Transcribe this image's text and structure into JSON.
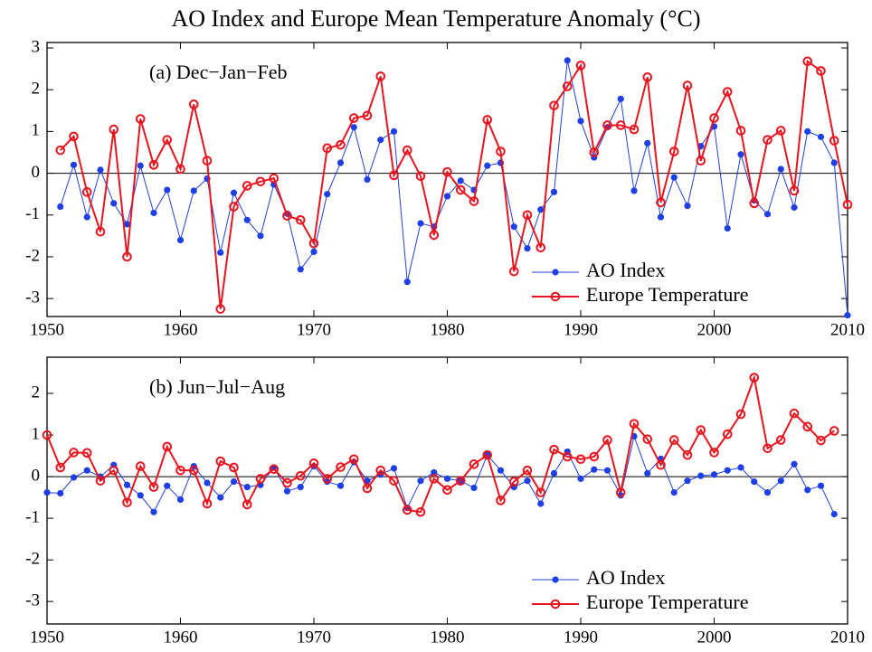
{
  "title": "AO Index and Europe Mean Temperature Anomaly (°C)",
  "chart_data": [
    {
      "type": "line",
      "annotation": "(a)  Dec−Jan−Feb",
      "legend": "lower right",
      "x": [
        1951,
        1952,
        1953,
        1954,
        1955,
        1956,
        1957,
        1958,
        1959,
        1960,
        1961,
        1962,
        1963,
        1964,
        1965,
        1966,
        1967,
        1968,
        1969,
        1970,
        1971,
        1972,
        1973,
        1974,
        1975,
        1976,
        1977,
        1978,
        1979,
        1980,
        1981,
        1982,
        1983,
        1984,
        1985,
        1986,
        1987,
        1988,
        1989,
        1990,
        1991,
        1992,
        1993,
        1994,
        1995,
        1996,
        1997,
        1998,
        1999,
        2000,
        2001,
        2002,
        2003,
        2004,
        2005,
        2006,
        2007,
        2008,
        2009,
        2010
      ],
      "xlim": [
        1950,
        2010
      ],
      "xticks": [
        1950,
        1960,
        1970,
        1980,
        1990,
        2000,
        2010
      ],
      "ylim": [
        -3.43,
        3.13
      ],
      "yticks": [
        -3,
        -2,
        -1,
        0,
        1,
        2,
        3
      ],
      "series": [
        {
          "name": "AO Index",
          "color": "#1f3fe6",
          "values": [
            -0.8,
            0.2,
            -1.05,
            0.08,
            -0.72,
            -1.22,
            0.18,
            -0.95,
            -0.4,
            -1.6,
            -0.42,
            -0.13,
            -1.9,
            -0.47,
            -1.12,
            -1.5,
            -0.27,
            -0.97,
            -2.3,
            -1.88,
            -0.5,
            0.25,
            1.1,
            -0.15,
            0.8,
            1.0,
            -2.6,
            -1.2,
            -1.28,
            -0.55,
            -0.18,
            -0.4,
            0.18,
            0.25,
            -1.28,
            -1.8,
            -0.87,
            -0.45,
            2.7,
            1.25,
            0.38,
            1.1,
            1.78,
            -0.42,
            0.72,
            -1.05,
            -0.1,
            -0.78,
            0.65,
            1.12,
            -1.32,
            0.45,
            -0.65,
            -0.98,
            0.1,
            -0.82,
            1.0,
            0.87,
            0.25,
            -3.4
          ]
        },
        {
          "name": "Europe Temperature",
          "color": "#e8141e",
          "values": [
            0.55,
            0.88,
            -0.45,
            -1.4,
            1.05,
            -2.0,
            1.3,
            0.2,
            0.8,
            0.1,
            1.65,
            0.3,
            -3.25,
            -0.8,
            -0.3,
            -0.2,
            -0.12,
            -1.02,
            -1.12,
            -1.68,
            0.6,
            0.68,
            1.32,
            1.38,
            2.32,
            -0.05,
            0.55,
            -0.07,
            -1.48,
            0.03,
            -0.4,
            -0.67,
            1.28,
            0.52,
            -2.35,
            -1.0,
            -1.78,
            1.62,
            2.08,
            2.58,
            0.5,
            1.15,
            1.15,
            1.05,
            2.3,
            -0.7,
            0.52,
            2.1,
            0.3,
            1.32,
            1.95,
            1.02,
            -0.72,
            0.8,
            1.02,
            -0.42,
            2.68,
            2.45,
            0.78,
            -0.75
          ]
        }
      ]
    },
    {
      "type": "line",
      "annotation": "(b)  Jun−Jul−Aug",
      "legend": "lower right",
      "x": [
        1950,
        1951,
        1952,
        1953,
        1954,
        1955,
        1956,
        1957,
        1958,
        1959,
        1960,
        1961,
        1962,
        1963,
        1964,
        1965,
        1966,
        1967,
        1968,
        1969,
        1970,
        1971,
        1972,
        1973,
        1974,
        1975,
        1976,
        1977,
        1978,
        1979,
        1980,
        1981,
        1982,
        1983,
        1984,
        1985,
        1986,
        1987,
        1988,
        1989,
        1990,
        1991,
        1992,
        1993,
        1994,
        1995,
        1996,
        1997,
        1998,
        1999,
        2000,
        2001,
        2002,
        2003,
        2004,
        2005,
        2006,
        2007,
        2008,
        2009
      ],
      "xlim": [
        1950,
        2010
      ],
      "xticks": [
        1950,
        1960,
        1970,
        1980,
        1990,
        2000,
        2010
      ],
      "ylim": [
        -3.54,
        2.87
      ],
      "yticks": [
        -3,
        -2,
        -1,
        0,
        1,
        2
      ],
      "series": [
        {
          "name": "AO Index",
          "color": "#1f3fe6",
          "values": [
            -0.38,
            -0.4,
            -0.02,
            0.15,
            0.0,
            0.28,
            -0.2,
            -0.45,
            -0.85,
            -0.22,
            -0.55,
            0.25,
            -0.15,
            -0.5,
            -0.12,
            -0.25,
            -0.2,
            0.22,
            -0.35,
            -0.25,
            0.25,
            -0.12,
            -0.22,
            0.35,
            -0.1,
            0.05,
            0.2,
            -0.75,
            -0.1,
            0.1,
            -0.05,
            -0.1,
            -0.27,
            0.52,
            0.15,
            -0.25,
            -0.1,
            -0.65,
            0.08,
            0.6,
            -0.05,
            0.17,
            0.15,
            -0.45,
            0.97,
            0.08,
            0.43,
            -0.38,
            -0.1,
            0.02,
            0.05,
            0.15,
            0.22,
            -0.12,
            -0.38,
            -0.1,
            0.3,
            -0.32,
            -0.22,
            -0.9
          ]
        },
        {
          "name": "Europe Temperature",
          "color": "#e8141e",
          "values": [
            1.0,
            0.22,
            0.58,
            0.57,
            -0.1,
            0.15,
            -0.62,
            0.25,
            -0.25,
            0.72,
            0.15,
            0.15,
            -0.65,
            0.37,
            0.22,
            -0.67,
            -0.05,
            0.18,
            -0.15,
            0.02,
            0.32,
            -0.05,
            0.23,
            0.42,
            -0.28,
            0.15,
            -0.1,
            -0.8,
            -0.85,
            -0.05,
            -0.32,
            -0.1,
            0.3,
            0.52,
            -0.57,
            -0.12,
            0.15,
            -0.38,
            0.65,
            0.48,
            0.42,
            0.48,
            0.88,
            -0.38,
            1.27,
            0.9,
            0.28,
            0.88,
            0.52,
            1.12,
            0.58,
            1.02,
            1.5,
            2.38,
            0.68,
            0.88,
            1.52,
            1.2,
            0.87,
            1.1
          ]
        }
      ]
    }
  ]
}
